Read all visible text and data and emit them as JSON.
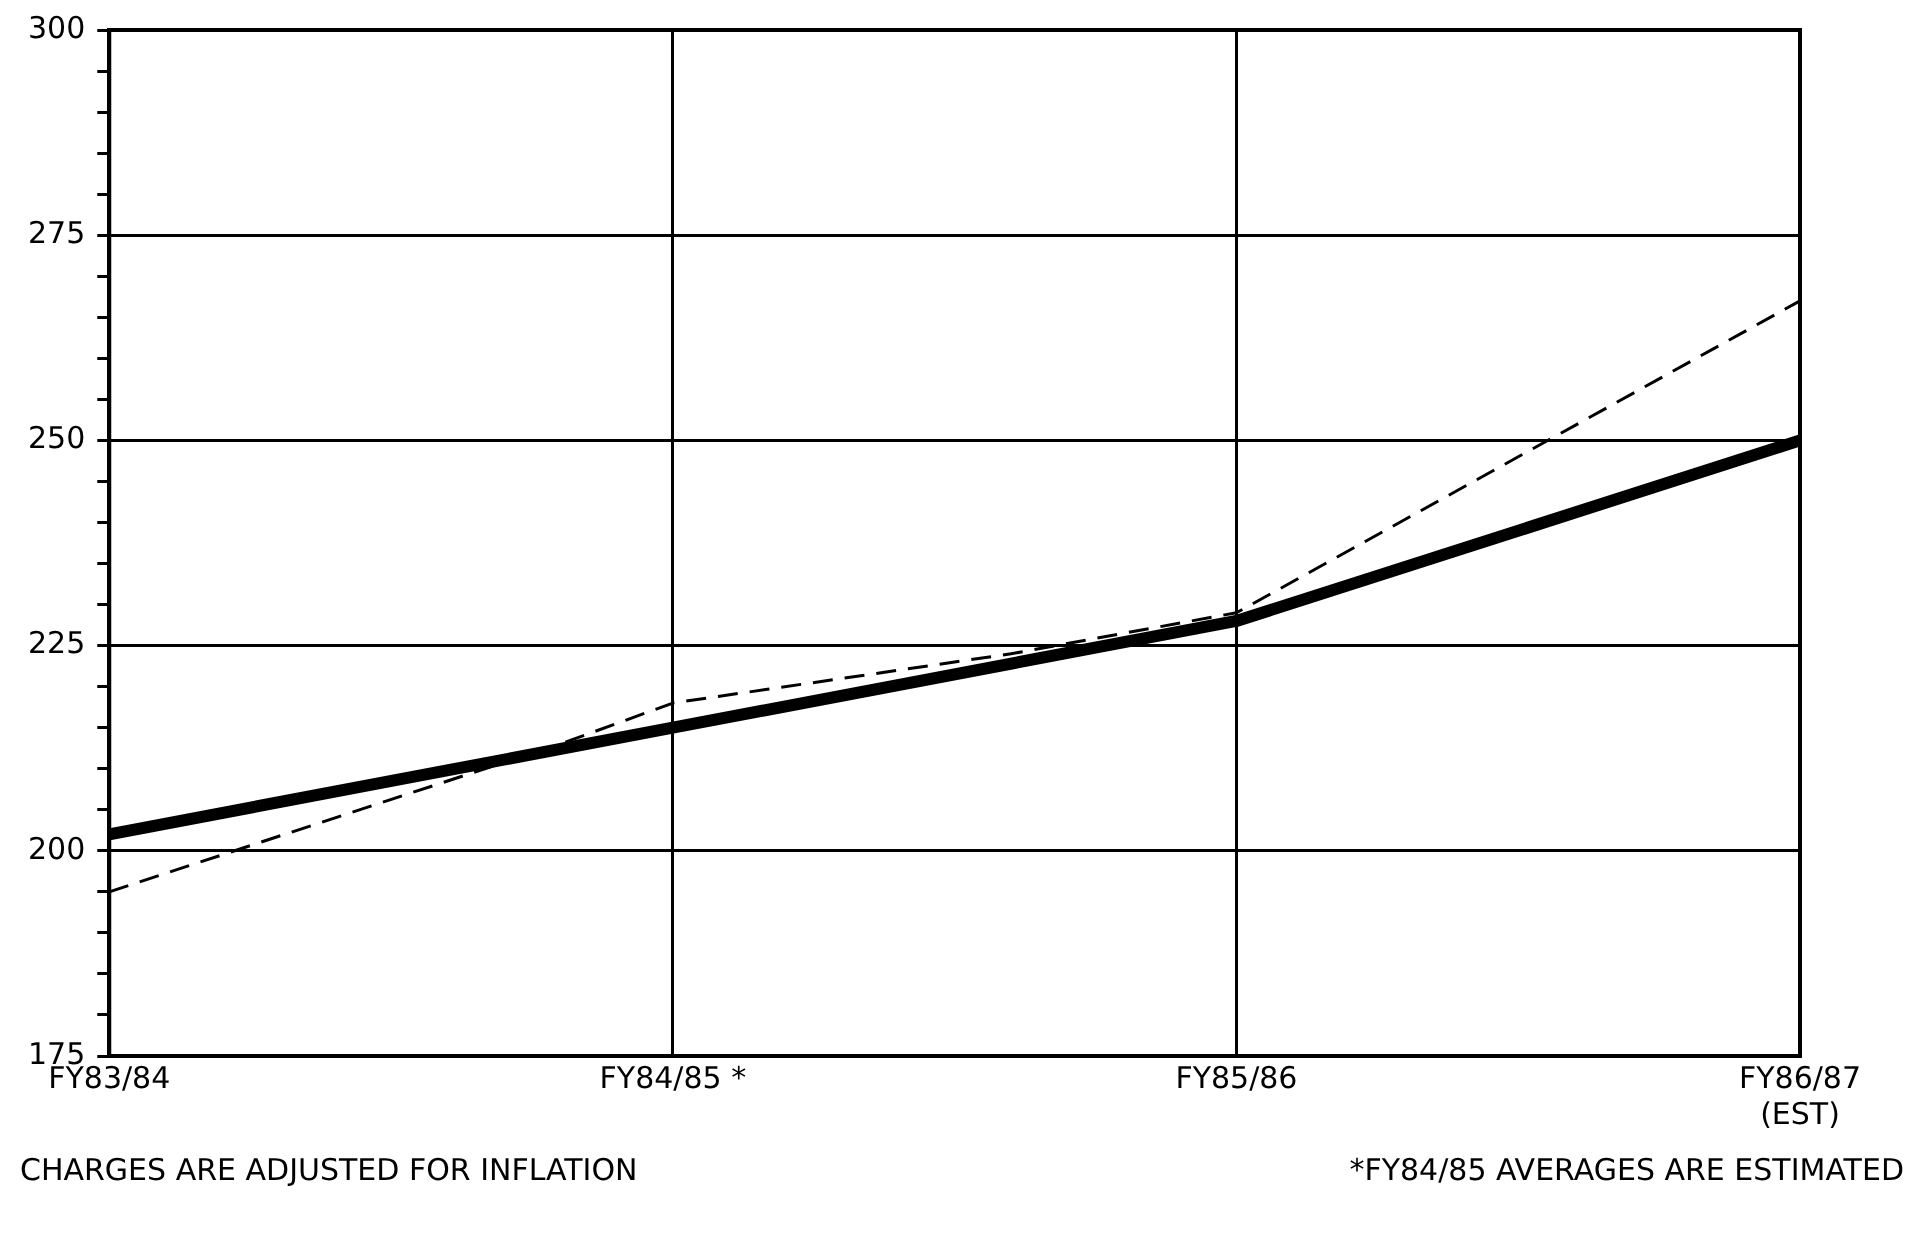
{
  "chart_data": {
    "type": "line",
    "categories": [
      "FY83/84",
      null,
      null,
      null,
      null,
      "FY84/85 *",
      null,
      null,
      null,
      null,
      "FY85/86",
      null,
      null,
      null,
      null,
      "FY86/87\n(EST)"
    ],
    "ylim": [
      175,
      300
    ],
    "yticks": [
      175,
      {
        "value": 180,
        "label": null
      },
      {
        "value": 185,
        "label": null
      },
      {
        "value": 190,
        "label": null
      },
      {
        "value": 195,
        "label": null
      },
      200,
      {
        "value": 205,
        "label": null
      },
      {
        "value": 210,
        "label": null
      },
      {
        "value": 215,
        "label": null
      },
      {
        "value": 220,
        "label": null
      },
      225,
      {
        "value": 230,
        "label": null
      },
      {
        "value": 235,
        "label": null
      },
      {
        "value": 240,
        "label": null
      },
      {
        "value": 245,
        "label": null
      },
      250,
      {
        "value": 255,
        "label": null
      },
      {
        "value": 260,
        "label": null
      },
      {
        "value": 265,
        "label": null
      },
      {
        "value": 270,
        "label": null
      },
      275,
      {
        "value": 280,
        "label": null
      },
      {
        "value": 285,
        "label": null
      },
      {
        "value": 290,
        "label": null
      },
      {
        "value": 295,
        "label": null
      },
      300
    ],
    "grid": true,
    "legend": false,
    "marker": "none",
    "series": [
      {
        "color": "#000000",
        "line_style": "solid",
        "values": [
          202,
          null,
          null,
          null,
          null,
          215,
          null,
          null,
          null,
          null,
          228,
          null,
          null,
          null,
          null,
          250
        ]
      },
      {
        "color": "#000000",
        "line_style": "dashed",
        "values": [
          195,
          null,
          null,
          null,
          213,
          218,
          null,
          null,
          224,
          null,
          229,
          null,
          null,
          null,
          null,
          267
        ]
      }
    ],
    "annotations": [
      "CHARGES ARE ADJUSTED FOR INFLATION",
      "*FY84/85 AVERAGES ARE ESTIMATED"
    ]
  }
}
